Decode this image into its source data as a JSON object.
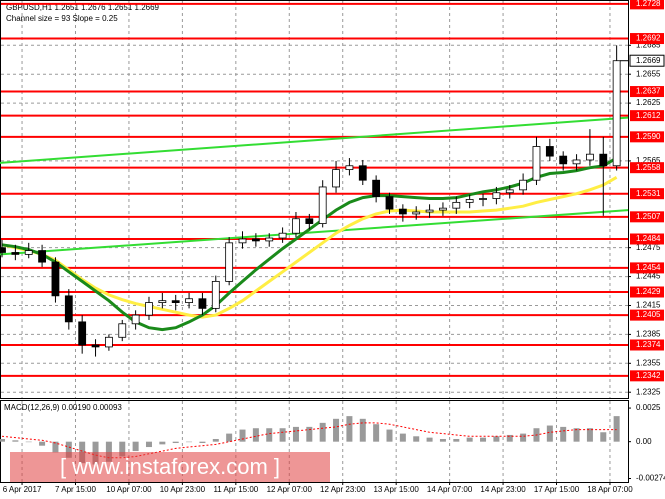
{
  "chart_data": [
    {
      "type": "candlestick",
      "title": "GBPUSD,H1  1.2651 1.2676 1.2651 1.2669",
      "subtitle": "Channel size = 93 Slope = 0.25",
      "categories": [
        null,
        null,
        null,
        null,
        null,
        null,
        null,
        null,
        null,
        null,
        null,
        null,
        null,
        null,
        null,
        null,
        null,
        null,
        null,
        null,
        null,
        null,
        null,
        null,
        null,
        null,
        null,
        null,
        null,
        null,
        null,
        null,
        null,
        null,
        null,
        null,
        null,
        null,
        null,
        null,
        null,
        null,
        null,
        null,
        null,
        null,
        null
      ],
      "open": [
        1.2475,
        1.247,
        1.2468,
        1.2472,
        1.246,
        1.2425,
        1.2398,
        1.2374,
        1.2372,
        1.2382,
        1.2396,
        1.2405,
        1.2418,
        1.242,
        1.2418,
        1.2422,
        1.2412,
        1.244,
        1.248,
        1.2484,
        1.2482,
        1.2485,
        1.249,
        1.2505,
        1.25,
        1.2538,
        1.2556,
        1.256,
        1.2545,
        1.2528,
        1.2515,
        1.251,
        1.2512,
        1.2514,
        1.2516,
        1.2522,
        1.2525,
        1.2526,
        1.2532,
        1.2535,
        1.2545,
        1.258,
        1.257,
        1.2562,
        1.2566,
        1.2572,
        1.256
      ],
      "high": [
        1.2483,
        1.2478,
        1.248,
        1.2478,
        1.2465,
        1.2432,
        1.2405,
        1.238,
        1.2385,
        1.24,
        1.241,
        1.2424,
        1.2428,
        1.2426,
        1.2428,
        1.2428,
        1.2446,
        1.2486,
        1.2492,
        1.249,
        1.249,
        1.2496,
        1.2512,
        1.251,
        1.2545,
        1.2565,
        1.2568,
        1.2566,
        1.255,
        1.2532,
        1.252,
        1.2518,
        1.252,
        1.2522,
        1.2528,
        1.253,
        1.2531,
        1.2538,
        1.254,
        1.2552,
        1.259,
        1.2588,
        1.2575,
        1.2572,
        1.2598,
        1.259,
        1.2685
      ],
      "low": [
        1.2465,
        1.2462,
        1.2464,
        1.2455,
        1.2418,
        1.239,
        1.2365,
        1.2362,
        1.2368,
        1.2378,
        1.239,
        1.24,
        1.2412,
        1.241,
        1.2412,
        1.2405,
        1.2408,
        1.2436,
        1.2474,
        1.2476,
        1.2476,
        1.248,
        1.2486,
        1.2494,
        1.2496,
        1.2532,
        1.255,
        1.254,
        1.2522,
        1.251,
        1.2502,
        1.2504,
        1.2506,
        1.2508,
        1.251,
        1.2516,
        1.2518,
        1.252,
        1.2526,
        1.253,
        1.254,
        1.2565,
        1.2555,
        1.2555,
        1.256,
        1.2508,
        1.2555
      ],
      "close": [
        1.247,
        1.2468,
        1.2472,
        1.246,
        1.2425,
        1.2398,
        1.2374,
        1.2372,
        1.2382,
        1.2396,
        1.2405,
        1.2418,
        1.242,
        1.2418,
        1.2422,
        1.2412,
        1.244,
        1.248,
        1.2484,
        1.2482,
        1.2485,
        1.249,
        1.2505,
        1.25,
        1.2538,
        1.2556,
        1.256,
        1.2545,
        1.2528,
        1.2515,
        1.251,
        1.2512,
        1.2514,
        1.2516,
        1.2522,
        1.2525,
        1.2526,
        1.2532,
        1.2535,
        1.2545,
        1.258,
        1.257,
        1.2562,
        1.2566,
        1.2572,
        1.256,
        1.2669
      ],
      "up_color": "#ffffff",
      "down_color": "#000000",
      "series": [
        {
          "color": "#ffee44",
          "values": [
            1.2478,
            1.2475,
            1.2472,
            1.2468,
            1.2462,
            1.2452,
            1.2442,
            1.2433,
            1.2426,
            1.2421,
            1.2417,
            1.2414,
            1.2411,
            1.2408,
            1.2405,
            1.2403,
            1.2405,
            1.2412,
            1.242,
            1.243,
            1.244,
            1.245,
            1.246,
            1.247,
            1.248,
            1.249,
            1.2498,
            1.2505,
            1.251,
            1.2513,
            1.2514,
            1.2513,
            1.2512,
            1.2512,
            1.2512,
            1.2512,
            1.2513,
            1.2514,
            1.2516,
            1.2518,
            1.2522,
            1.2525,
            1.2528,
            1.2531,
            1.2535,
            1.254,
            1.2548
          ]
        },
        {
          "color": "#1a8a1a",
          "values": [
            1.2478,
            1.2476,
            1.2473,
            1.2468,
            1.246,
            1.245,
            1.244,
            1.243,
            1.242,
            1.2408,
            1.2398,
            1.2392,
            1.239,
            1.2392,
            1.2398,
            1.2405,
            1.2415,
            1.2428,
            1.244,
            1.2452,
            1.2463,
            1.2474,
            1.2484,
            1.2494,
            1.2504,
            1.2514,
            1.2522,
            1.2527,
            1.2529,
            1.2529,
            1.2528,
            1.2527,
            1.2526,
            1.2526,
            1.2527,
            1.253,
            1.2533,
            1.2535,
            1.2538,
            1.2542,
            1.2548,
            1.2552,
            1.2553,
            1.2555,
            1.2558,
            1.256,
            1.2568
          ]
        }
      ],
      "channel": [
        {
          "color": "#33dd33",
          "x": [
            -0.15,
            46.85
          ],
          "values": [
            1.2563,
            1.261
          ]
        },
        {
          "color": "#33dd33",
          "x": [
            -0.15,
            46.85
          ],
          "values": [
            1.2468,
            1.2514
          ]
        }
      ],
      "levels": [
        1.2728,
        1.2692,
        1.2637,
        1.2612,
        {
          "value": 1.259,
          "label": "1.2590"
        },
        1.2558,
        1.2531,
        1.2507,
        1.2484,
        1.2454,
        1.2429,
        1.2405,
        1.2374,
        1.2342
      ],
      "level_color": "#ff0000",
      "last": 1.2669,
      "xlim": [
        -0.15,
        46.85
      ],
      "xticks": [
        {
          "value": 1.5,
          "label": "6 Apr 2017"
        },
        {
          "value": 5.5,
          "label": "7 Apr 15:00"
        },
        {
          "value": 9.5,
          "label": "10 Apr 07:00"
        },
        {
          "value": 13.5,
          "label": "10 Apr 23:00"
        },
        {
          "value": 17.5,
          "label": "11 Apr 15:00"
        },
        {
          "value": 21.5,
          "label": "12 Apr 07:00"
        },
        {
          "value": 25.5,
          "label": "12 Apr 23:00"
        },
        {
          "value": 29.5,
          "label": "13 Apr 15:00"
        },
        {
          "value": 33.5,
          "label": "14 Apr 07:00"
        },
        {
          "value": 37.5,
          "label": "14 Apr 23:00"
        },
        {
          "value": 41.5,
          "label": "17 Apr 15:00"
        },
        {
          "value": 45.5,
          "label": "18 Apr 07:00"
        }
      ],
      "ylim": [
        1.2319,
        1.2732
      ],
      "yticks": [
        1.2685,
        1.2655,
        1.2625,
        1.2565,
        1.2475,
        1.2445,
        1.2415,
        1.2385,
        1.2355,
        1.2325
      ],
      "grid": true
    },
    {
      "type": "bar",
      "title": "MACD(12,26,9) 0.00190 0.00093",
      "color": "#9a9a9a",
      "values": [
        0.0002,
        0.0001,
        0.0,
        -0.0003,
        -0.0008,
        -0.0012,
        -0.0016,
        -0.0017,
        -0.0015,
        -0.0011,
        -0.0007,
        -0.0004,
        -0.0002,
        -0.0001,
        0.0,
        -0.0001,
        0.0002,
        0.0006,
        0.0009,
        0.001,
        0.001,
        0.001,
        0.0011,
        0.0011,
        0.0014,
        0.0017,
        0.0019,
        0.0017,
        0.0013,
        0.0009,
        0.0006,
        0.0004,
        0.0003,
        0.0002,
        0.0002,
        0.0003,
        0.0003,
        0.0004,
        0.0005,
        0.0006,
        0.001,
        0.0012,
        0.0011,
        0.001,
        0.001,
        0.0007,
        0.0019
      ],
      "signal": {
        "color": "#ff0000",
        "values": [
          0.0004,
          0.0003,
          0.0002,
          0.0001,
          -0.0001,
          -0.0004,
          -0.0007,
          -0.001,
          -0.0012,
          -0.0012,
          -0.0011,
          -0.0009,
          -0.0007,
          -0.0005,
          -0.0004,
          -0.0003,
          -0.0002,
          0.0,
          0.0002,
          0.0004,
          0.0006,
          0.0007,
          0.0008,
          0.0009,
          0.001,
          0.0011,
          0.0013,
          0.0014,
          0.0014,
          0.0013,
          0.0011,
          0.0009,
          0.0007,
          0.0006,
          0.0005,
          0.0004,
          0.0004,
          0.0004,
          0.0004,
          0.0004,
          0.0005,
          0.0007,
          0.0008,
          0.0009,
          0.0009,
          0.0009,
          0.0009
        ]
      },
      "ylim": [
        -0.003,
        0.0031
      ],
      "yticks": [
        0.0025,
        {
          "value": 0,
          "label": "0.00"
        },
        -0.00274
      ]
    }
  ],
  "watermark": "[ www.instaforex.com ]"
}
